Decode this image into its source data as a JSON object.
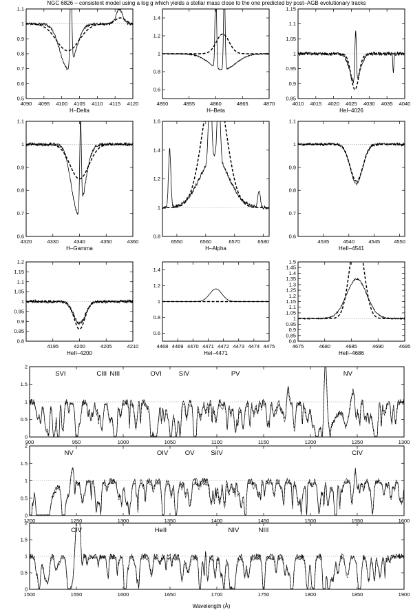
{
  "figure": {
    "title": "NGC 6826 – consistent model using a log g which yields a stellar mass close to the one predicted by post–AGB evolutionary tracks",
    "bottom_xlabel": "Wavelength (Å)"
  },
  "chart_data": [
    {
      "type": "line",
      "xlabel": "H–Delta",
      "xlim": [
        4090,
        4120
      ],
      "ylim": [
        0.5,
        1.1
      ],
      "xticks": [
        4090,
        4095,
        4100,
        4105,
        4110,
        4115,
        4120
      ],
      "yticks": [
        0.5,
        0.6,
        0.7,
        0.8,
        0.9,
        1,
        1.1
      ],
      "ref": 1,
      "observed": {
        "center": 4101.7,
        "depth": 0.3,
        "width": 2.2,
        "emission": [
          [
            4102.6,
            0.6,
            0.25
          ],
          [
            4116.2,
            0.1,
            0.9
          ]
        ],
        "noise": 0.008
      },
      "model": {
        "center": 4101.7,
        "depth": 0.18,
        "width": 3.2,
        "emission": [
          [
            4116.5,
            0.04,
            1.5
          ]
        ]
      }
    },
    {
      "type": "line",
      "xlabel": "H–Beta",
      "xlim": [
        4850,
        4870
      ],
      "ylim": [
        0.5,
        1.5
      ],
      "xticks": [
        4850,
        4855,
        4860,
        4865,
        4870
      ],
      "yticks": [
        0.6,
        0.8,
        1,
        1.2,
        1.4
      ],
      "ref": 1,
      "observed": {
        "center": 4861.3,
        "depth": 0.18,
        "width": 2.4,
        "emission": [
          [
            4860.0,
            0.9,
            0.15
          ],
          [
            4861.6,
            0.9,
            0.15
          ]
        ],
        "noise": 0.006
      },
      "model": {
        "center": 4861.3,
        "depth": 0,
        "width": 2,
        "emission": [
          [
            4861.3,
            0.22,
            1.2
          ]
        ]
      }
    },
    {
      "type": "line",
      "xlabel": "HeI–4026",
      "xlim": [
        4010,
        4040
      ],
      "ylim": [
        0.85,
        1.15
      ],
      "xticks": [
        4010,
        4015,
        4020,
        4025,
        4030,
        4035,
        4040
      ],
      "yticks": [
        0.85,
        0.9,
        0.95,
        1,
        1.05,
        1.1,
        1.15
      ],
      "ref": 1,
      "observed": {
        "center": 4026,
        "depth": 0.1,
        "width": 1.4,
        "emission": [
          [
            4026.2,
            0.18,
            0.2
          ],
          [
            4036.8,
            -0.06,
            0.15
          ]
        ],
        "noise": 0.006
      },
      "model": {
        "center": 4026,
        "depth": 0.12,
        "width": 1.1,
        "emission": []
      }
    },
    {
      "type": "line",
      "xlabel": "H–Gamma",
      "xlim": [
        4320,
        4360
      ],
      "ylim": [
        0.6,
        1.1
      ],
      "xticks": [
        4320,
        4330,
        4340,
        4350,
        4360
      ],
      "yticks": [
        0.6,
        0.7,
        0.8,
        0.9,
        1,
        1.1
      ],
      "ref": 1,
      "observed": {
        "center": 4339.5,
        "depth": 0.3,
        "width": 2.5,
        "emission": [
          [
            4340.4,
            0.4,
            0.3
          ]
        ],
        "noise": 0.007
      },
      "model": {
        "center": 4340,
        "depth": 0.15,
        "width": 3.5,
        "emission": []
      }
    },
    {
      "type": "line",
      "xlabel": "H–Alpha",
      "xlim": [
        4545,
        4582
      ],
      "ylim": [
        0.8,
        1.6
      ],
      "xticks": [
        6550,
        6560,
        6570,
        6580
      ],
      "ytick_labels": [
        0.8,
        1,
        1.2,
        1.4,
        1.6
      ],
      "yticks": [
        0.8,
        1,
        1.2,
        1.4,
        1.6
      ],
      "ref": 1,
      "observed": {
        "center": 6563,
        "depth": 0,
        "width": 6,
        "emission": [
          [
            6563,
            0.35,
            5
          ],
          [
            6561.5,
            0.6,
            0.5
          ],
          [
            6564.5,
            0.5,
            0.5
          ],
          [
            6547.5,
            0.4,
            0.4
          ],
          [
            6578.5,
            0.12,
            0.4
          ]
        ],
        "noise": 0.012
      },
      "model": {
        "center": 6563,
        "depth": 0,
        "width": 4,
        "emission": [
          [
            6563,
            0.9,
            4.0
          ]
        ]
      },
      "xshift": 6550
    },
    {
      "type": "line",
      "xlabel": "HeII–4541",
      "xlim": [
        4530,
        4551
      ],
      "ylim": [
        0.6,
        1.1
      ],
      "xticks": [
        4535,
        4540,
        4545,
        4550
      ],
      "yticks": [
        0.6,
        0.7,
        0.8,
        0.9,
        1,
        1.1
      ],
      "ref": 1,
      "observed": {
        "center": 4541.5,
        "depth": 0.17,
        "width": 1.2,
        "emission": [],
        "noise": 0.006
      },
      "model": {
        "center": 4541.5,
        "depth": 0.16,
        "width": 1.25,
        "emission": []
      }
    },
    {
      "type": "line",
      "xlabel": "HeII–4200",
      "xlim": [
        4190,
        4210
      ],
      "ylim": [
        0.8,
        1.2
      ],
      "xticks": [
        4195,
        4200,
        4205,
        4210
      ],
      "yticks": [
        0.8,
        0.85,
        0.9,
        0.95,
        1,
        1.05,
        1.1,
        1.15,
        1.2
      ],
      "ref": 1,
      "observed": {
        "center": 4200,
        "depth": 0.11,
        "width": 1.1,
        "emission": [],
        "noise": 0.008
      },
      "model": {
        "center": 4200,
        "depth": 0.14,
        "width": 1.0,
        "emission": []
      }
    },
    {
      "type": "line",
      "xlabel": "HeI–4471",
      "xlim": [
        4468,
        4475
      ],
      "ylim": [
        0.5,
        1.5
      ],
      "xticks": [
        4468,
        4469,
        4470,
        4471,
        4472,
        4473,
        4474,
        4475
      ],
      "yticks": [
        0.6,
        0.8,
        1,
        1.2,
        1.4
      ],
      "ref": 1,
      "observed": {
        "center": 4471.5,
        "depth": 0,
        "width": 0.4,
        "emission": [
          [
            4471.5,
            0.16,
            0.4
          ]
        ],
        "noise": 0.002
      },
      "model": {
        "center": 4471.5,
        "depth": 0,
        "width": 0.4,
        "emission": []
      }
    },
    {
      "type": "line",
      "xlabel": "HeII–4686",
      "xlim": [
        4675,
        4695
      ],
      "ylim": [
        0.8,
        1.5
      ],
      "xticks": [
        4675,
        4680,
        4685,
        4690,
        4695
      ],
      "yticks": [
        0.8,
        0.85,
        0.9,
        0.95,
        1,
        1.05,
        1.1,
        1.15,
        1.2,
        1.25,
        1.3,
        1.35,
        1.4,
        1.45,
        1.5
      ],
      "ref": 1,
      "observed": {
        "center": 4686,
        "depth": 0,
        "width": 2,
        "emission": [
          [
            4686,
            0.35,
            1.9
          ]
        ],
        "noise": 0.006
      },
      "model": {
        "center": 4686,
        "depth": 0,
        "width": 1.5,
        "emission": [
          [
            4686,
            0.75,
            1.3
          ]
        ]
      }
    },
    {
      "type": "line",
      "xlabel": "",
      "xlim": [
        900,
        1300
      ],
      "ylim": [
        0,
        2
      ],
      "xticks": [
        900,
        950,
        1000,
        1050,
        1100,
        1150,
        1200,
        1250,
        1300
      ],
      "yticks": [
        0,
        0.5,
        1,
        1.5,
        2
      ],
      "ref": 1,
      "uv": true,
      "seed": 7,
      "ions": [
        {
          "label": "SVI",
          "x": 933
        },
        {
          "label": "CIII",
          "x": 977
        },
        {
          "label": "NIII",
          "x": 991
        },
        {
          "label": "OVI",
          "x": 1035
        },
        {
          "label": "SIV",
          "x": 1065
        },
        {
          "label": "PV",
          "x": 1120
        },
        {
          "label": "NV",
          "x": 1240
        }
      ],
      "features": [
        [
          1216,
          -0.8,
          10
        ],
        [
          1216,
          2.0,
          1.5
        ],
        [
          1240,
          -0.6,
          4
        ],
        [
          1245,
          0.6,
          3
        ],
        [
          1033,
          -0.7,
          3
        ],
        [
          1120,
          -0.8,
          1.5
        ],
        [
          1128,
          -0.7,
          1.5
        ],
        [
          977,
          -0.8,
          1.5
        ],
        [
          990,
          -0.7,
          1.5
        ],
        [
          918,
          -0.8,
          2
        ],
        [
          926,
          -0.8,
          1.5
        ],
        [
          931,
          -0.6,
          1
        ],
        [
          950,
          -0.6,
          1
        ],
        [
          1176,
          0.5,
          1
        ]
      ]
    },
    {
      "type": "line",
      "xlabel": "",
      "xlim": [
        1200,
        1600
      ],
      "ylim": [
        0,
        2
      ],
      "xticks": [
        1200,
        1250,
        1300,
        1350,
        1400,
        1450,
        1500,
        1550,
        1600
      ],
      "yticks": [
        0,
        0.5,
        1,
        1.5,
        2
      ],
      "ref": 1,
      "uv": true,
      "seed": 13,
      "ions": [
        {
          "label": "NV",
          "x": 1242
        },
        {
          "label": "OIV",
          "x": 1342
        },
        {
          "label": "OV",
          "x": 1371
        },
        {
          "label": "SiIV",
          "x": 1400
        },
        {
          "label": "CIV",
          "x": 1550
        }
      ],
      "features": [
        [
          1216,
          -0.8,
          8
        ],
        [
          1240,
          -0.6,
          4
        ],
        [
          1245,
          0.6,
          3
        ],
        [
          1550,
          -0.9,
          3
        ],
        [
          1548,
          1.0,
          1.5
        ],
        [
          1552,
          0.9,
          1.5
        ],
        [
          1371,
          -0.7,
          1.5
        ],
        [
          1394,
          -0.6,
          1.5
        ],
        [
          1403,
          -0.6,
          1.5
        ],
        [
          1342,
          -0.4,
          1
        ]
      ]
    },
    {
      "type": "line",
      "xlabel": "",
      "xlim": [
        1500,
        1900
      ],
      "ylim": [
        0,
        2
      ],
      "xticks": [
        1500,
        1550,
        1600,
        1650,
        1700,
        1750,
        1800,
        1850,
        1900
      ],
      "yticks": [
        0,
        0.5,
        1,
        1.5,
        2
      ],
      "ref": 1,
      "uv": true,
      "seed": 21,
      "ions": [
        {
          "label": "CIV",
          "x": 1550
        },
        {
          "label": "HeII",
          "x": 1640
        },
        {
          "label": "NIV",
          "x": 1718
        },
        {
          "label": "NIII",
          "x": 1750
        }
      ],
      "features": [
        [
          1545,
          -0.9,
          3
        ],
        [
          1552,
          1.3,
          2
        ],
        [
          1550,
          0.8,
          2
        ],
        [
          1640,
          0.4,
          1.5
        ],
        [
          1718,
          -0.5,
          2
        ],
        [
          1720,
          0.3,
          1
        ],
        [
          1688,
          0.5,
          0.6
        ]
      ]
    }
  ]
}
